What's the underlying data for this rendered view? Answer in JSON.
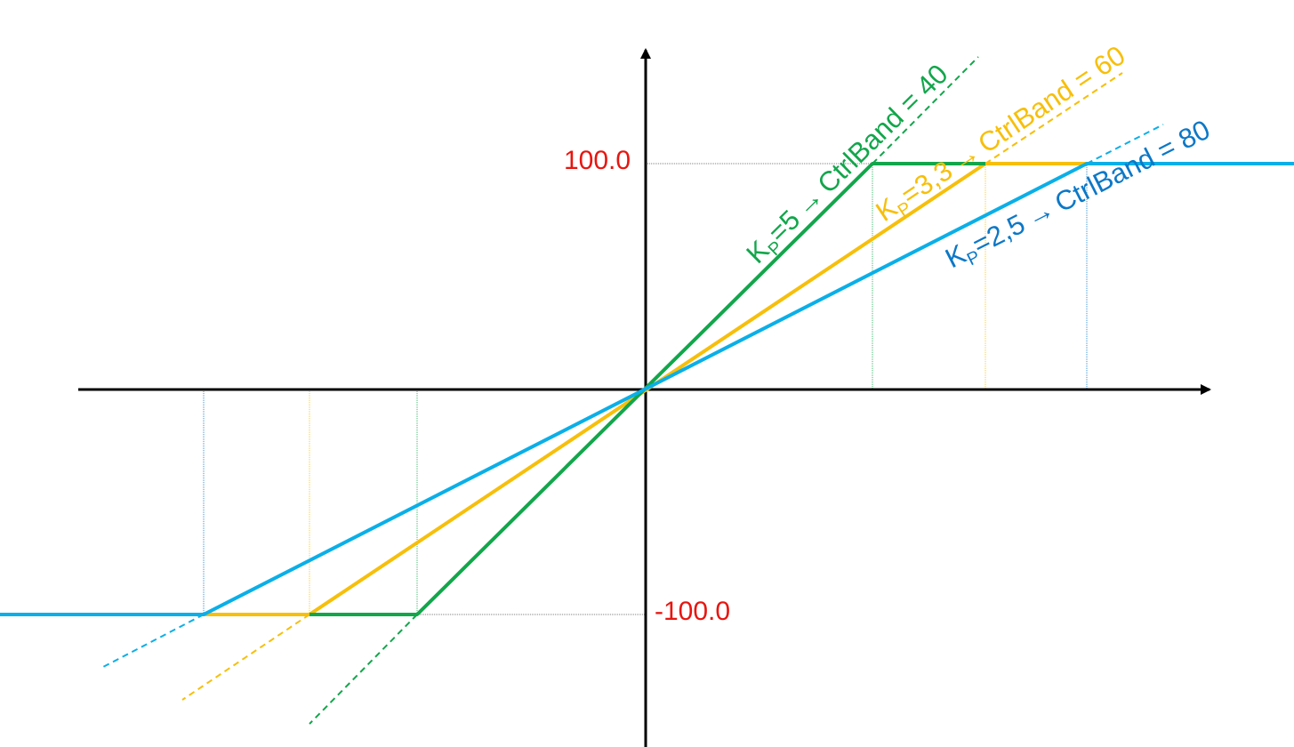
{
  "diagram": {
    "y_ticks": {
      "upper": "100.0",
      "lower": "-100.0",
      "color": "#e8150f"
    },
    "curves": [
      {
        "id": "green",
        "color": "#12a64b",
        "kp_symbol": "K",
        "kp_subscript": "P",
        "kp_value": "=5",
        "arrow": "→",
        "band_text": "CtrlBand = 40"
      },
      {
        "id": "yellow",
        "color": "#f7bf0a",
        "kp_symbol": "K",
        "kp_subscript": "P",
        "kp_value": "=3,3",
        "arrow": "→",
        "band_text": "CtrlBand = 60"
      },
      {
        "id": "blue",
        "color": "#0b78c7",
        "line_color": "#0aafe8",
        "kp_symbol": "K",
        "kp_subscript": "P",
        "kp_value": "=2,5",
        "arrow": "→",
        "band_text": "CtrlBand = 80"
      }
    ],
    "axis_color": "#000000"
  }
}
